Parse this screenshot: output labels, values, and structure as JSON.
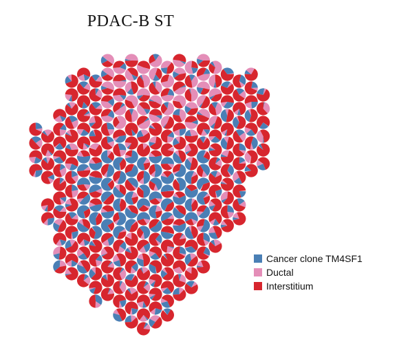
{
  "title": "PDAC-B ST",
  "chart_data": {
    "type": "spatial-pie-scatter",
    "title": "PDAC-B ST",
    "legend": {
      "placement": "bottom-right",
      "entries": [
        {
          "name": "Cancer clone TM4SF1",
          "color": "#4a7fb5"
        },
        {
          "name": "Ductal",
          "color": "#e48eb8"
        },
        {
          "name": "Interstitium",
          "color": "#d7262e"
        }
      ]
    },
    "grid": false,
    "axes_visible": false,
    "spot_columns": [
      {
        "col": 0,
        "rows": [
          5,
          6,
          7,
          8
        ]
      },
      {
        "col": 1,
        "rows": [
          5,
          6,
          7,
          8,
          10,
          11
        ]
      },
      {
        "col": 2,
        "rows": [
          4,
          5,
          6,
          7,
          8,
          9,
          10,
          11,
          12,
          13,
          14,
          15
        ]
      },
      {
        "col": 3,
        "rows": [
          1,
          2,
          3,
          4,
          5,
          6,
          7,
          8,
          9,
          10,
          11,
          12,
          13,
          14,
          15
        ]
      },
      {
        "col": 4,
        "rows": [
          1,
          2,
          3,
          4,
          5,
          6,
          7,
          8,
          9,
          10,
          11,
          12,
          13,
          14,
          15,
          16
        ]
      },
      {
        "col": 5,
        "rows": [
          1,
          2,
          3,
          4,
          5,
          6,
          7,
          8,
          9,
          10,
          11,
          12,
          13,
          14,
          15,
          16,
          17
        ]
      },
      {
        "col": 6,
        "rows": [
          0,
          1,
          2,
          3,
          4,
          5,
          6,
          7,
          8,
          9,
          10,
          11,
          12,
          13,
          14,
          15,
          16,
          17
        ]
      },
      {
        "col": 7,
        "rows": [
          0,
          1,
          2,
          3,
          4,
          5,
          6,
          7,
          8,
          9,
          10,
          11,
          12,
          13,
          14,
          15,
          16,
          17,
          18
        ]
      },
      {
        "col": 8,
        "rows": [
          0,
          1,
          2,
          3,
          4,
          5,
          6,
          7,
          8,
          9,
          10,
          11,
          12,
          13,
          14,
          15,
          16,
          17,
          18,
          19
        ]
      },
      {
        "col": 9,
        "rows": [
          0,
          1,
          2,
          3,
          4,
          5,
          6,
          7,
          8,
          9,
          10,
          11,
          12,
          13,
          14,
          15,
          16,
          17,
          18,
          19
        ]
      },
      {
        "col": 10,
        "rows": [
          0,
          1,
          2,
          3,
          4,
          5,
          6,
          7,
          8,
          9,
          10,
          11,
          12,
          13,
          14,
          15,
          16,
          17,
          18,
          19
        ]
      },
      {
        "col": 11,
        "rows": [
          0,
          1,
          2,
          3,
          4,
          5,
          6,
          7,
          8,
          9,
          10,
          11,
          12,
          13,
          14,
          15,
          16,
          17,
          18
        ]
      },
      {
        "col": 12,
        "rows": [
          0,
          1,
          2,
          3,
          4,
          5,
          6,
          7,
          8,
          9,
          10,
          11,
          12,
          13,
          14,
          15,
          16,
          17
        ]
      },
      {
        "col": 13,
        "rows": [
          0,
          1,
          2,
          3,
          4,
          5,
          6,
          7,
          8,
          9,
          10,
          11,
          12,
          13,
          14,
          15,
          16
        ]
      },
      {
        "col": 14,
        "rows": [
          0,
          1,
          2,
          3,
          4,
          5,
          6,
          7,
          8,
          9,
          10,
          11,
          12,
          13,
          14,
          15
        ]
      },
      {
        "col": 15,
        "rows": [
          0,
          1,
          2,
          3,
          4,
          5,
          6,
          7,
          8,
          9,
          10,
          11,
          12,
          13
        ]
      },
      {
        "col": 16,
        "rows": [
          1,
          2,
          3,
          4,
          5,
          6,
          7,
          8,
          9,
          10,
          11,
          12
        ]
      },
      {
        "col": 17,
        "rows": [
          1,
          2,
          3,
          4,
          5,
          6,
          7,
          8,
          9,
          10,
          11
        ]
      },
      {
        "col": 18,
        "rows": [
          1,
          2,
          3,
          4,
          5,
          6,
          7,
          8
        ]
      },
      {
        "col": 19,
        "rows": [
          2,
          3,
          4,
          5,
          6,
          7
        ]
      }
    ]
  }
}
